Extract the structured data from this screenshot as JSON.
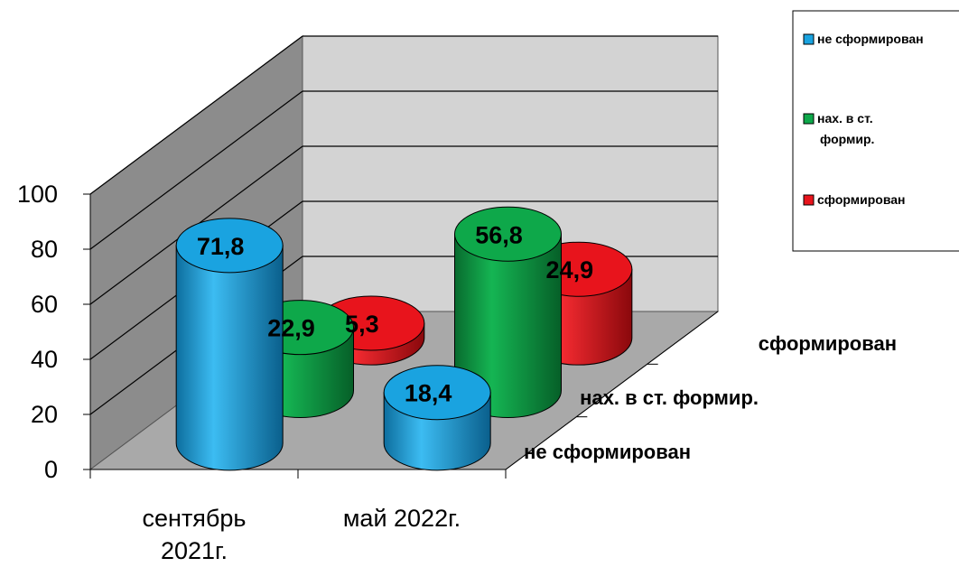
{
  "chart_data": {
    "type": "bar",
    "subtype": "3d-cylinder",
    "title": "",
    "xlabel": "",
    "ylabel": "",
    "ylim": [
      0,
      100
    ],
    "yticks": [
      "0",
      "20",
      "40",
      "60",
      "80",
      "100"
    ],
    "categories": [
      "сентябрь 2021г.",
      "май 2022г."
    ],
    "category_lines": [
      [
        "сентябрь",
        "2021г."
      ],
      [
        "май 2022г."
      ]
    ],
    "series": [
      {
        "name": "не сформирован",
        "values": [
          71.8,
          18.4
        ],
        "labels": [
          "71,8",
          "18,4"
        ],
        "color": "#1aa3e0"
      },
      {
        "name": "нах. в ст. формир.",
        "values": [
          22.9,
          56.8
        ],
        "labels": [
          "22,9",
          "56,8"
        ],
        "color": "#0ea84a"
      },
      {
        "name": "сформирован",
        "values": [
          5.3,
          24.9
        ],
        "labels": [
          "5,3",
          "24,9"
        ],
        "color": "#e8141c"
      }
    ],
    "legend": {
      "placement": "top-right",
      "entries": [
        {
          "lines": [
            "не сформирован"
          ]
        },
        {
          "lines": [
            "нах. в ст.",
            "формир."
          ]
        },
        {
          "lines": [
            "сформирован"
          ]
        }
      ]
    },
    "depth_axis_labels": [
      "сформирован",
      "нах. в ст. формир.",
      "не сформирован"
    ],
    "grid": true,
    "colors": {
      "back_wall": "#d3d3d3",
      "side_wall": "#8c8c8c",
      "floor": "#a9a9a9",
      "grid": "#000000"
    }
  }
}
